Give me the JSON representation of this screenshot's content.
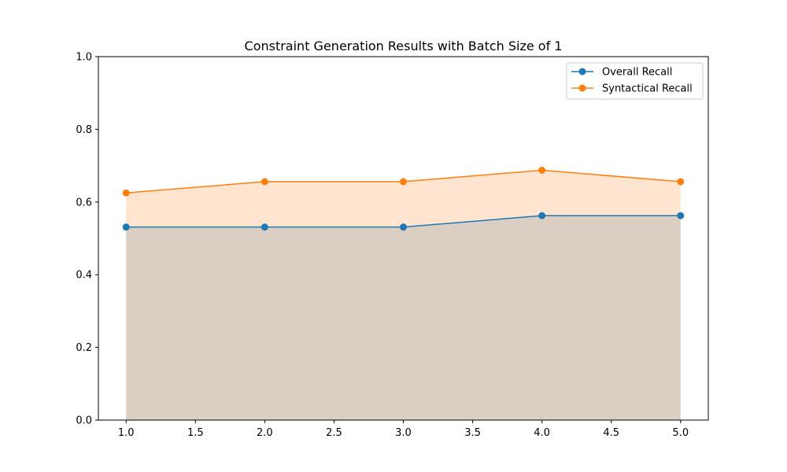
{
  "chart_data": {
    "type": "area",
    "title": "Constraint Generation Results with Batch Size of 1",
    "xlabel": "",
    "ylabel": "",
    "x": [
      1,
      2,
      3,
      4,
      5
    ],
    "xlim": [
      0.8,
      5.2
    ],
    "ylim": [
      0,
      1.0
    ],
    "xticks": [
      "1.0",
      "1.5",
      "2.0",
      "2.5",
      "3.0",
      "3.5",
      "4.0",
      "4.5",
      "5.0"
    ],
    "yticks": [
      "0.0",
      "0.2",
      "0.4",
      "0.6",
      "0.8",
      "1.0"
    ],
    "grid": false,
    "legend_position": "top-right",
    "series": [
      {
        "name": "Overall Recall",
        "values": [
          0.531,
          0.531,
          0.531,
          0.5625,
          0.5625
        ],
        "color": "#1f77b4",
        "fill_color": "#1f77b4"
      },
      {
        "name": "Syntactical Recall",
        "values": [
          0.625,
          0.656,
          0.656,
          0.6875,
          0.656
        ],
        "color": "#ff7f0e",
        "fill_color": "#ff7f0e"
      }
    ]
  }
}
